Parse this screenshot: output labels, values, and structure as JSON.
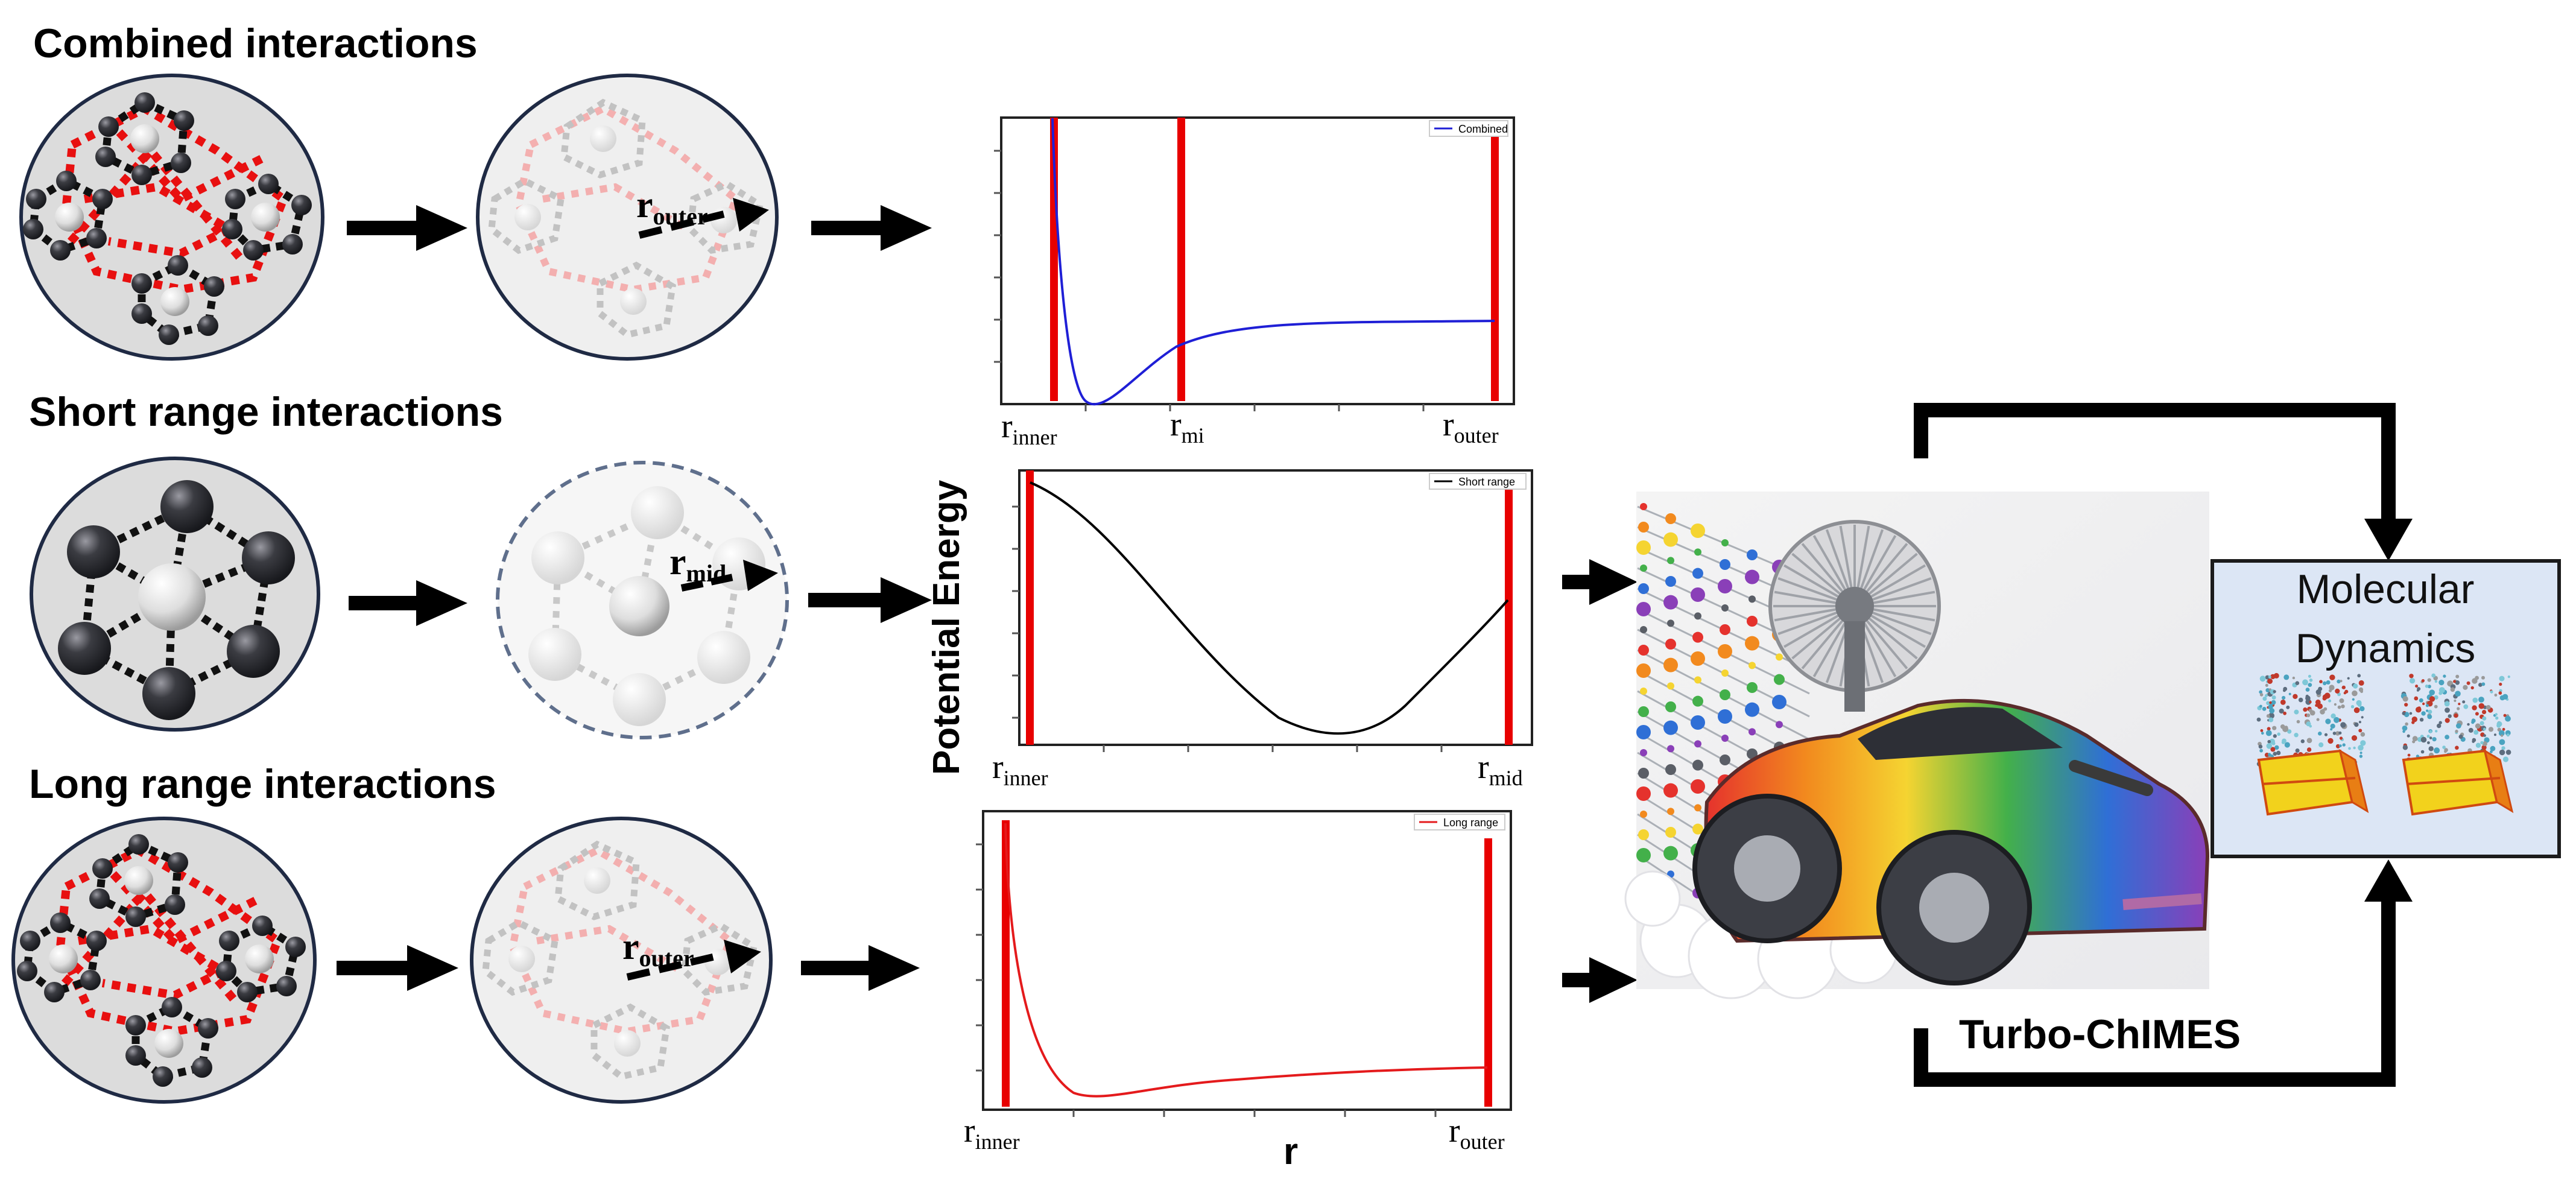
{
  "sections": {
    "combined": "Combined interactions",
    "short": "Short range interactions",
    "long": "Long range interactions"
  },
  "cutoffs": {
    "inner_base": "r",
    "inner_sub": "inner",
    "mi_sub": "mi",
    "mid_sub": "mid",
    "outer_sub": "outer"
  },
  "axes": {
    "ylabel": "Potential Energy",
    "xlabel": "r"
  },
  "legends": {
    "combined": "Combined",
    "short": "Short range",
    "long": "Long range"
  },
  "product": "Turbo-ChIMES",
  "md": {
    "line1": "Molecular",
    "line2": "Dynamics"
  },
  "colors": {
    "combined_curve": "#1f1fd6",
    "short_curve": "#000000",
    "long_curve": "#e41a1c",
    "cutoff_line": "#e80000",
    "md_box": "#dce6f5",
    "circle_fill": "#dcdcdc"
  },
  "chart_data": [
    {
      "type": "line",
      "series": [
        {
          "name": "Combined",
          "shape": "repulsive wall, well near x=0.08, plateau"
        }
      ],
      "xlabel": "",
      "ylabel": "",
      "cutoffs": [
        "r_inner",
        "r_mi",
        "r_outer"
      ]
    },
    {
      "type": "line",
      "series": [
        {
          "name": "Short range",
          "shape": "cosine-like well between cutoffs"
        }
      ],
      "xlabel": "",
      "ylabel": "Potential Energy",
      "cutoffs": [
        "r_inner",
        "r_mid"
      ]
    },
    {
      "type": "line",
      "series": [
        {
          "name": "Long range",
          "shape": "repulsive wall, shallow well, plateau"
        }
      ],
      "xlabel": "r",
      "ylabel": "",
      "cutoffs": [
        "r_inner",
        "r_outer"
      ]
    }
  ]
}
